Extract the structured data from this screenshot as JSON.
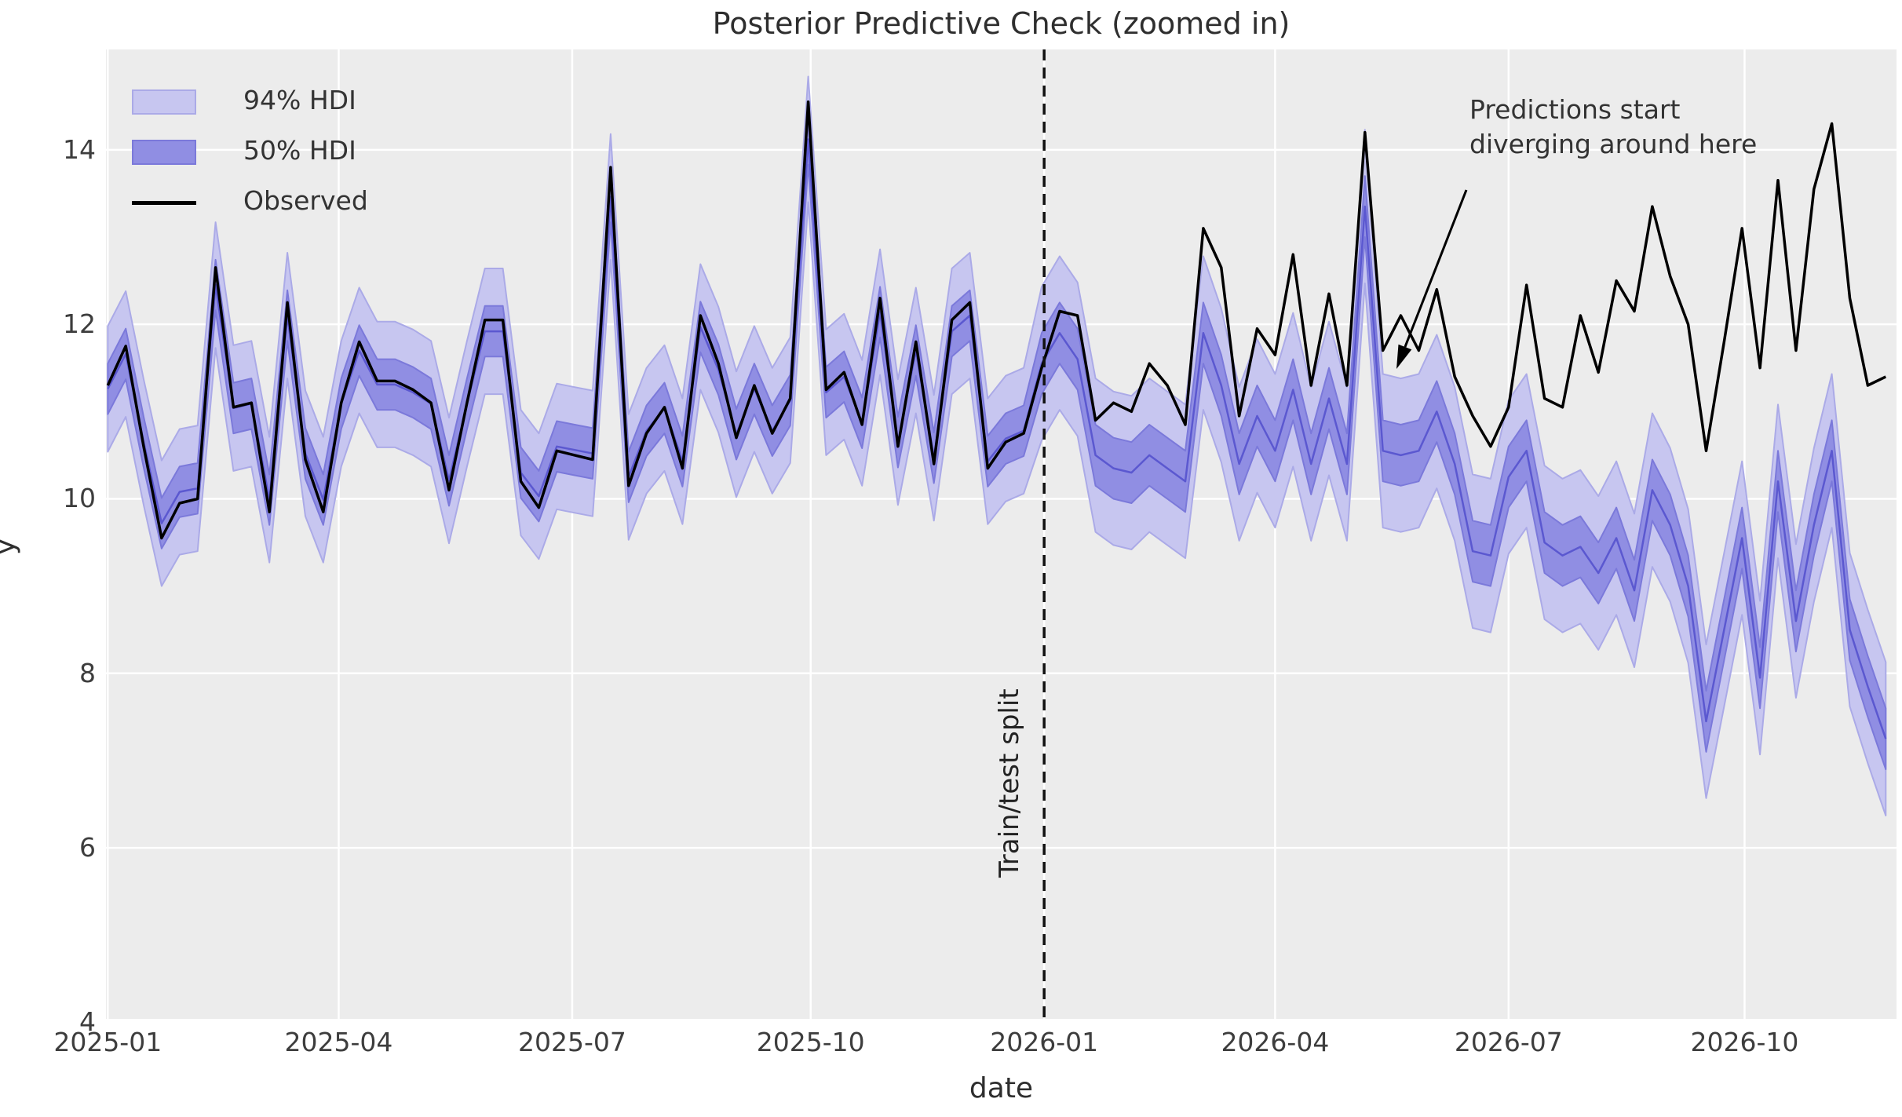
{
  "title": "Posterior Predictive Check (zoomed in)",
  "xlabel": "date",
  "ylabel": "y",
  "legend": [
    {
      "label": "94% HDI",
      "swatch": "band-light"
    },
    {
      "label": "50% HDI",
      "swatch": "band-dark"
    },
    {
      "label": "Observed",
      "swatch": "line"
    }
  ],
  "annotation": {
    "text": "Predictions start\ndiverging around here"
  },
  "split": {
    "label": "Train/test split"
  },
  "colors": {
    "figure_bg": "#ffffff",
    "axes_bg": "#ececec",
    "grid": "#ffffff",
    "observed": "#000000",
    "median": "#5b58d0",
    "hdi94_fill": "#c7c6f0",
    "hdi94_edge": "#abaae7",
    "hdi50_fill": "#908ee3",
    "hdi50_edge": "#7b79da",
    "split_line": "#111111",
    "text": "#333333"
  },
  "chart_data": {
    "type": "line",
    "title": "Posterior Predictive Check (zoomed in)",
    "xlabel": "date",
    "ylabel": "y",
    "x_start_date": "2025-01-01",
    "x_freq": "weekly",
    "n_points": 100,
    "xlim_weeks": [
      -0.1,
      99.6
    ],
    "ylim": [
      4.04,
      15.15
    ],
    "y_ticks": [
      4,
      6,
      8,
      10,
      12,
      14
    ],
    "x_ticks": [
      {
        "label": "2025-01",
        "week": 0
      },
      {
        "label": "2025-04",
        "week": 12.86
      },
      {
        "label": "2025-07",
        "week": 25.86
      },
      {
        "label": "2025-10",
        "week": 39.14
      },
      {
        "label": "2026-01",
        "week": 52.14
      },
      {
        "label": "2026-04",
        "week": 65.0
      },
      {
        "label": "2026-07",
        "week": 78.0
      },
      {
        "label": "2026-10",
        "week": 91.14
      }
    ],
    "split_week": 52.14,
    "split_index": 52,
    "grid": true,
    "legend_position": "upper-left",
    "hdi94_halfwidth": {
      "train": 0.72,
      "test": 0.88
    },
    "hdi50_halfwidth": {
      "train": 0.29,
      "test": 0.35
    },
    "series": [
      {
        "name": "Observed",
        "values": [
          11.3,
          11.75,
          10.6,
          9.55,
          9.95,
          10.0,
          12.65,
          11.05,
          11.1,
          9.85,
          12.25,
          10.45,
          9.85,
          11.1,
          11.8,
          11.35,
          11.35,
          11.25,
          11.1,
          10.1,
          11.1,
          12.05,
          12.05,
          10.2,
          9.9,
          10.55,
          10.5,
          10.45,
          13.8,
          10.15,
          10.75,
          11.05,
          10.35,
          12.1,
          11.55,
          10.7,
          11.3,
          10.75,
          11.15,
          14.55,
          11.25,
          11.45,
          10.85,
          12.3,
          10.6,
          11.8,
          10.4,
          12.05,
          12.25,
          10.35,
          10.65,
          10.75,
          11.5,
          12.15,
          12.1,
          10.9,
          11.1,
          11.0,
          11.55,
          11.3,
          10.85,
          13.1,
          12.65,
          10.95,
          11.95,
          11.65,
          12.8,
          11.3,
          12.35,
          11.3,
          14.2,
          11.7,
          12.1,
          11.7,
          12.4,
          11.4,
          10.95,
          10.6,
          11.05,
          12.45,
          11.15,
          11.05,
          12.1,
          11.45,
          12.5,
          12.15,
          13.35,
          12.55,
          12.0,
          10.55,
          11.8,
          13.1,
          11.5,
          13.65,
          11.7,
          13.55,
          14.3,
          12.3,
          11.3,
          11.4
        ]
      },
      {
        "name": "Posterior median",
        "values": [
          11.26,
          11.66,
          10.65,
          9.72,
          10.08,
          10.12,
          12.45,
          11.04,
          11.09,
          9.99,
          12.1,
          10.52,
          9.99,
          11.09,
          11.7,
          11.31,
          11.31,
          11.22,
          11.09,
          10.21,
          11.09,
          11.92,
          11.92,
          10.3,
          10.03,
          10.6,
          10.56,
          10.52,
          13.46,
          10.25,
          10.78,
          11.04,
          10.43,
          11.97,
          11.48,
          10.74,
          11.26,
          10.78,
          11.13,
          14.12,
          11.22,
          11.4,
          10.87,
          12.14,
          10.65,
          11.7,
          10.47,
          11.92,
          12.1,
          10.43,
          10.69,
          10.78,
          11.55,
          11.9,
          11.6,
          10.5,
          10.35,
          10.3,
          10.5,
          10.35,
          10.2,
          11.9,
          11.3,
          10.4,
          10.95,
          10.55,
          11.25,
          10.4,
          11.15,
          10.4,
          13.35,
          10.55,
          10.5,
          10.55,
          11.0,
          10.4,
          9.4,
          9.35,
          10.25,
          10.55,
          9.5,
          9.35,
          9.45,
          9.15,
          9.55,
          8.95,
          10.1,
          9.7,
          9.0,
          7.45,
          8.5,
          9.55,
          7.95,
          10.2,
          8.6,
          9.7,
          10.55,
          8.5,
          7.85,
          7.25
        ]
      }
    ]
  }
}
